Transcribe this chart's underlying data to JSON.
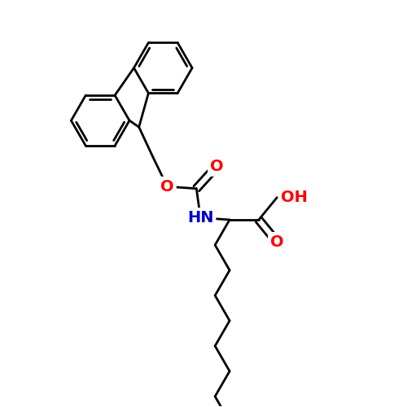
{
  "background_color": "#ffffff",
  "bond_color": "#000000",
  "bond_width": 2.0,
  "atom_colors": {
    "O": "#ff0000",
    "N": "#0000cc",
    "C": "#000000"
  },
  "font_size_atom": 13,
  "fig_size": [
    5.0,
    5.0
  ],
  "dpi": 100,
  "xlim": [
    0,
    10
  ],
  "ylim": [
    0,
    10
  ]
}
